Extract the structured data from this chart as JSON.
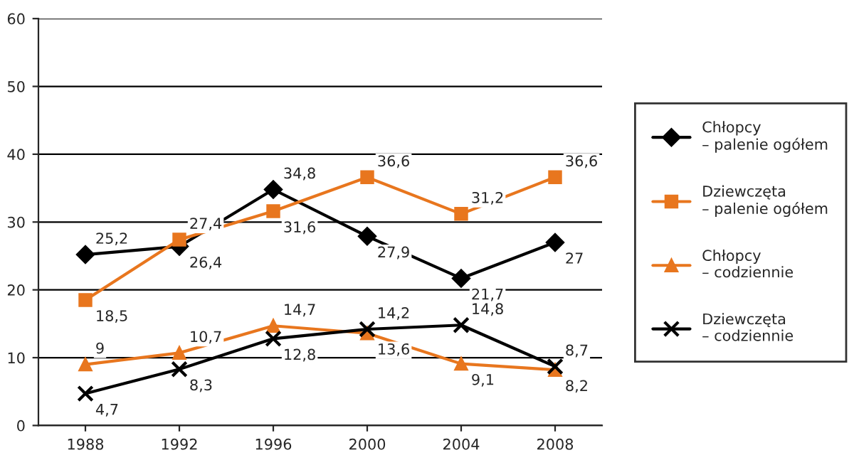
{
  "chart_data": {
    "type": "line",
    "categories": [
      "1988",
      "1992",
      "1996",
      "2000",
      "2004",
      "2008"
    ],
    "ylim": [
      0,
      60
    ],
    "yticks": [
      0,
      10,
      20,
      30,
      40,
      50,
      60
    ],
    "grid": "y",
    "legend": "right",
    "series": [
      {
        "name": "Chłopcy\n– palenie ogółem",
        "color": "#000000",
        "marker": "diamond",
        "values": [
          25.2,
          26.4,
          34.8,
          27.9,
          21.7,
          27
        ],
        "value_labels": [
          "25,2",
          "26,4",
          "34,8",
          "27,9",
          "21,7",
          "27"
        ]
      },
      {
        "name": "Dziewczęta\n– palenie ogółem",
        "color": "#e8761e",
        "marker": "square",
        "values": [
          18.5,
          27.4,
          31.6,
          36.6,
          31.2,
          36.6
        ],
        "value_labels": [
          "18,5",
          "27,4",
          "31,6",
          "36,6",
          "31,2",
          "36,6"
        ]
      },
      {
        "name": "Chłopcy\n– codziennie",
        "color": "#e8761e",
        "marker": "triangle",
        "values": [
          9,
          10.7,
          14.7,
          13.6,
          9.1,
          8.2
        ],
        "value_labels": [
          "9",
          "10,7",
          "14,7",
          "13,6",
          "9,1",
          "8,2"
        ]
      },
      {
        "name": "Dziewczęta\n– codziennie",
        "color": "#000000",
        "marker": "cross",
        "values": [
          4.7,
          8.3,
          12.8,
          14.2,
          14.8,
          8.7
        ],
        "value_labels": [
          "4,7",
          "8,3",
          "12,8",
          "14,2",
          "14,8",
          "8,7"
        ]
      }
    ]
  }
}
